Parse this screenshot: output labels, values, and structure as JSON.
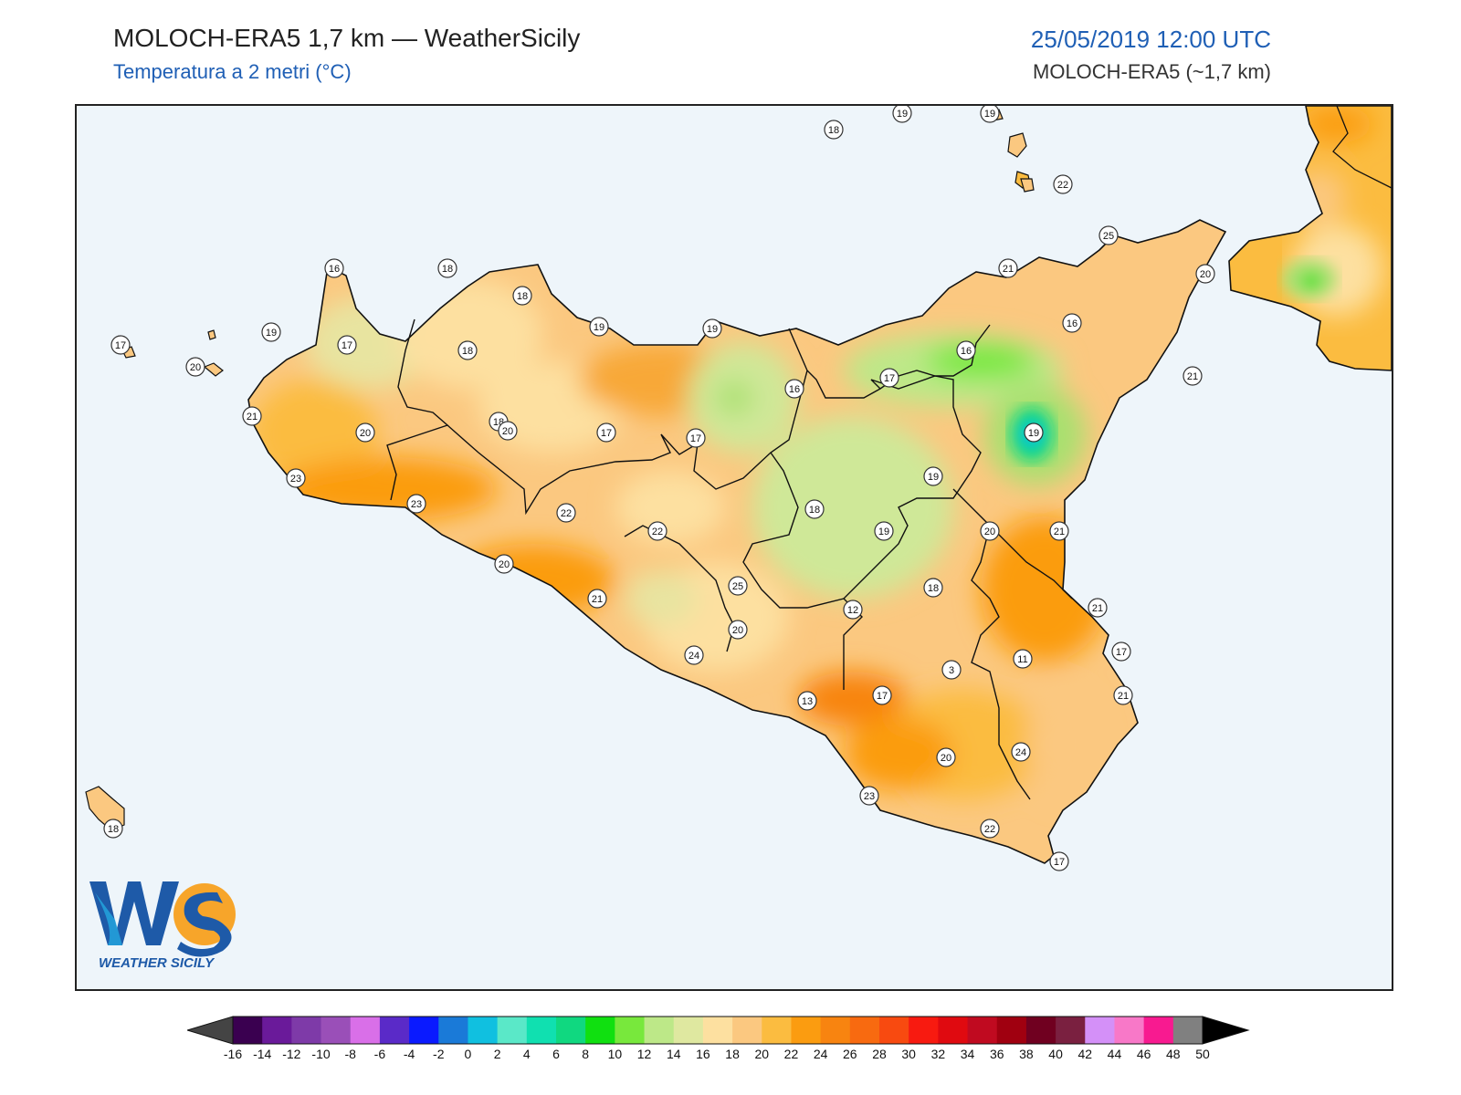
{
  "header": {
    "title": "MOLOCH-ERA5 1,7 km — WeatherSicily",
    "subtitle": "Temperatura a 2 metri (°C)",
    "datetime": "25/05/2019 12:00 UTC",
    "model": "MOLOCH-ERA5 (~1,7 km)"
  },
  "logo": {
    "mark": "WS",
    "text": "WEATHER SICILY"
  },
  "colors": {
    "sea": "#eef5fa",
    "accent": "#1f5fb5"
  },
  "colorbar": {
    "ticks": [
      "-16",
      "-14",
      "-12",
      "-10",
      "-8",
      "-6",
      "-4",
      "-2",
      "0",
      "2",
      "4",
      "6",
      "8",
      "10",
      "12",
      "14",
      "16",
      "18",
      "20",
      "22",
      "24",
      "26",
      "28",
      "30",
      "32",
      "34",
      "36",
      "38",
      "40",
      "42",
      "44",
      "46",
      "48",
      "50"
    ],
    "colors": [
      "#3a0050",
      "#6a1a9a",
      "#7e3aa8",
      "#9a4fb8",
      "#d96fe8",
      "#5a2ac8",
      "#0a1aff",
      "#1a7ad8",
      "#10c0e0",
      "#5ae8c8",
      "#10e0b0",
      "#10d880",
      "#10e010",
      "#78e83c",
      "#bde888",
      "#dfe8a0",
      "#fde0a0",
      "#fbc880",
      "#fbbc40",
      "#fb9c10",
      "#f88410",
      "#f86a10",
      "#f84a10",
      "#f81a10",
      "#e00a10",
      "#c00a20",
      "#a00010",
      "#700020",
      "#7a2040",
      "#d490f8",
      "#f878c8",
      "#f81a90",
      "#808080",
      "#3a3a3a"
    ]
  },
  "station_labels": [
    "16",
    "18",
    "18",
    "19",
    "19",
    "17",
    "18",
    "19",
    "17",
    "20",
    "21",
    "20",
    "18",
    "23",
    "23",
    "17",
    "17",
    "16",
    "21",
    "25",
    "21",
    "20",
    "16",
    "16",
    "17",
    "19",
    "19",
    "18",
    "19",
    "20",
    "21",
    "21",
    "18",
    "12",
    "11",
    "3",
    "17",
    "13",
    "17",
    "21",
    "24",
    "22",
    "17",
    "23",
    "20",
    "21",
    "24",
    "25",
    "22",
    "22",
    "20",
    "20",
    "20",
    "22",
    "18",
    "19",
    "19",
    "18"
  ]
}
